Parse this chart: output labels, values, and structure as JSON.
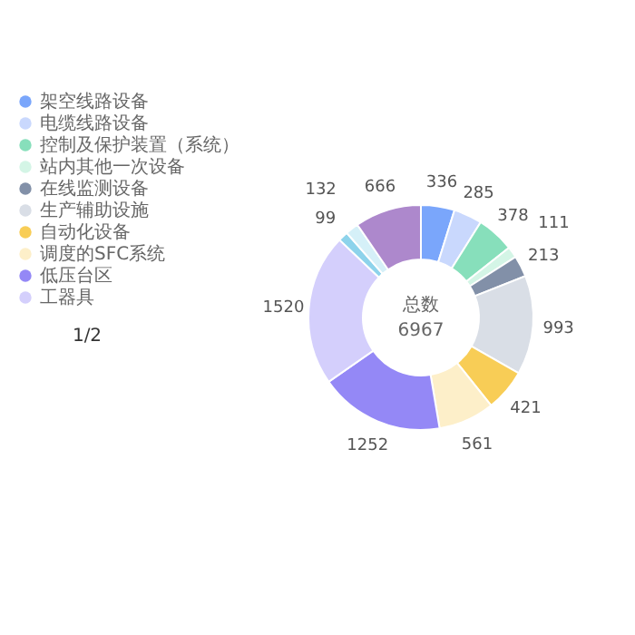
{
  "chart_data": {
    "type": "donut",
    "categories": [
      "架空线路设备",
      "电缆线路设备",
      "控制及保护装置（系统）",
      "站内其他一次设备",
      "在线监测设备",
      "生产辅助设施",
      "自动化设备",
      "调度的SFC系统",
      "低压台区",
      "工器具",
      null,
      null,
      null
    ],
    "values": [
      336,
      285,
      378,
      111,
      213,
      993,
      421,
      561,
      1252,
      1520,
      99,
      132,
      666
    ],
    "colors": [
      "#7aa6fb",
      "#c9d8fd",
      "#87dfbb",
      "#d4f5e6",
      "#8290a8",
      "#d9dee6",
      "#f8cd56",
      "#fdefc9",
      "#9488f6",
      "#d4cffc",
      "#8dd3eb",
      "#d5f0f8",
      "#ad88cc"
    ],
    "annotations": [
      "总数",
      "6967",
      "1/2"
    ],
    "data_labels": true,
    "legend": "left"
  }
}
